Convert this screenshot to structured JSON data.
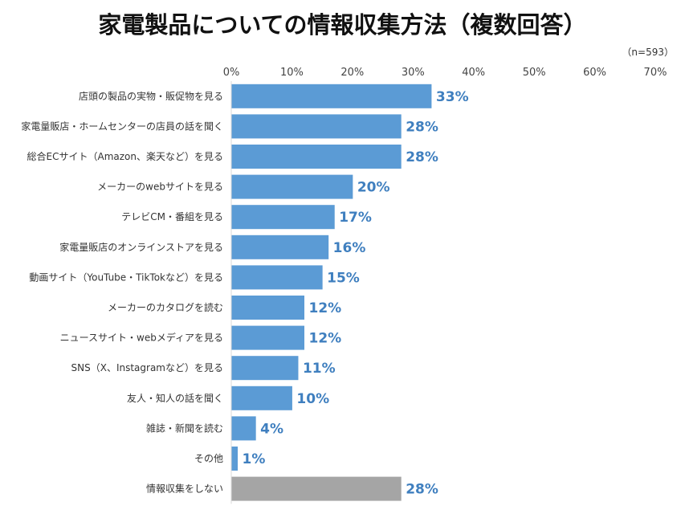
{
  "chart_data": {
    "type": "bar",
    "orientation": "horizontal",
    "title": "家電製品についての情報収集方法（複数回答）",
    "note": "（n=593）",
    "categories": [
      "店頭の製品の実物・販促物を見る",
      "家電量販店・ホームセンターの店員の話を聞く",
      "総合ECサイト（Amazon、楽天など）を見る",
      "メーカーのwebサイトを見る",
      "テレビCM・番組を見る",
      "家電量販店のオンラインストアを見る",
      "動画サイト（YouTube・TikTokなど）を見る",
      "メーカーのカタログを読む",
      "ニュースサイト・webメディアを見る",
      "SNS（X、Instagramなど）を見る",
      "友人・知人の話を聞く",
      "雑誌・新聞を読む",
      "その他",
      "情報収集をしない"
    ],
    "values": [
      33,
      28,
      28,
      20,
      17,
      16,
      15,
      12,
      12,
      11,
      10,
      4,
      1,
      28
    ],
    "data_labels": [
      "33%",
      "28%",
      "28%",
      "20%",
      "17%",
      "16%",
      "15%",
      "12%",
      "12%",
      "11%",
      "10%",
      "4%",
      "1%",
      "28%"
    ],
    "xlim": [
      0,
      70
    ],
    "x_ticks": [
      "0%",
      "10%",
      "20%",
      "30%",
      "40%",
      "50%",
      "60%",
      "70%"
    ],
    "x_axis_position": "top",
    "grid": false,
    "colors": {
      "bar": "#5b9bd5",
      "bar_highlight_last": "#a5a5a5",
      "data_label": "#3f7fbf"
    }
  }
}
